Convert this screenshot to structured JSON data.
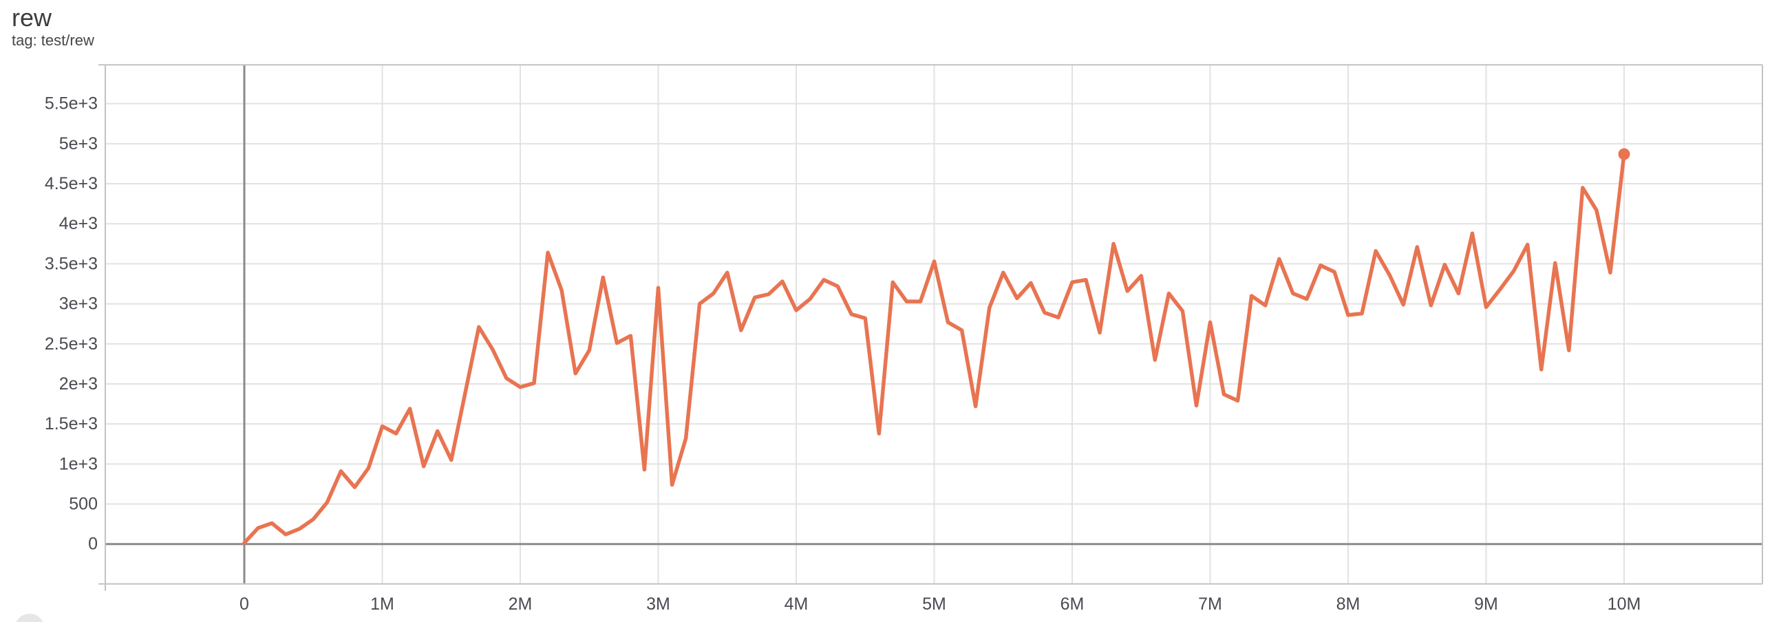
{
  "header": {
    "title": "rew",
    "tag": "tag: test/rew"
  },
  "colors": {
    "line": "#e87451",
    "grid": "#e2e2e2",
    "border": "#c2c2c2",
    "zero_axis": "#8a8a8a",
    "tick_text": "#4a4a52",
    "title_text": "#3c3c3c"
  },
  "chart_data": {
    "type": "line",
    "title": "rew",
    "subtitle": "tag: test/rew",
    "grid": true,
    "legend": "none",
    "x_unit": "steps (millions)",
    "xlim_millions": [
      -1.01,
      11.0
    ],
    "ylim": [
      -500,
      5990
    ],
    "x_tick_millions": [
      0,
      1,
      2,
      3,
      4,
      5,
      6,
      7,
      8,
      9,
      10
    ],
    "x_tick_labels": [
      "0",
      "1M",
      "2M",
      "3M",
      "4M",
      "5M",
      "6M",
      "7M",
      "8M",
      "9M",
      "10M"
    ],
    "y_tick_values": [
      0,
      500,
      1000,
      1500,
      2000,
      2500,
      3000,
      3500,
      4000,
      4500,
      5000,
      5500
    ],
    "y_tick_labels": [
      "0",
      "500",
      "1e+3",
      "1.5e+3",
      "2e+3",
      "2.5e+3",
      "3e+3",
      "3.5e+3",
      "4e+3",
      "4.5e+3",
      "5e+3",
      "5.5e+3"
    ],
    "series": [
      {
        "name": "test/rew",
        "x_millions": [
          0,
          0.1,
          0.2,
          0.3,
          0.4,
          0.5,
          0.6,
          0.7,
          0.8,
          0.9,
          1,
          1.1,
          1.2,
          1.3,
          1.4,
          1.5,
          1.6,
          1.7,
          1.8,
          1.9,
          2,
          2.1,
          2.2,
          2.3,
          2.4,
          2.5,
          2.6,
          2.7,
          2.8,
          2.9,
          3,
          3.1,
          3.2,
          3.3,
          3.4,
          3.5,
          3.6,
          3.7,
          3.8,
          3.9,
          4,
          4.1,
          4.2,
          4.3,
          4.4,
          4.5,
          4.6,
          4.7,
          4.8,
          4.9,
          5,
          5.1,
          5.2,
          5.3,
          5.4,
          5.5,
          5.6,
          5.7,
          5.8,
          5.9,
          6,
          6.1,
          6.2,
          6.3,
          6.4,
          6.5,
          6.6,
          6.7,
          6.8,
          6.9,
          7,
          7.1,
          7.2,
          7.3,
          7.4,
          7.5,
          7.6,
          7.7,
          7.8,
          7.9,
          8,
          8.1,
          8.2,
          8.3,
          8.4,
          8.5,
          8.6,
          8.7,
          8.8,
          8.9,
          9,
          9.1,
          9.2,
          9.3,
          9.4,
          9.5,
          9.6,
          9.7,
          9.8,
          9.9,
          10
        ],
        "values": [
          15,
          200,
          260,
          120,
          190,
          310,
          520,
          910,
          710,
          950,
          1470,
          1380,
          1690,
          970,
          1410,
          1050,
          1880,
          2710,
          2430,
          2070,
          1960,
          2010,
          3640,
          3170,
          2130,
          2420,
          3330,
          2510,
          2600,
          930,
          3200,
          740,
          1320,
          3000,
          3130,
          3390,
          2670,
          3080,
          3120,
          3280,
          2920,
          3060,
          3300,
          3220,
          2870,
          2820,
          1380,
          3270,
          3030,
          3030,
          3530,
          2770,
          2670,
          1720,
          2950,
          3390,
          3070,
          3260,
          2890,
          2830,
          3270,
          3300,
          2640,
          3750,
          3160,
          3350,
          2300,
          3130,
          2910,
          1730,
          2770,
          1870,
          1790,
          3100,
          2980,
          3560,
          3130,
          3060,
          3480,
          3400,
          2860,
          2880,
          3660,
          3360,
          2990,
          3710,
          2980,
          3490,
          3130,
          3880,
          2960,
          3180,
          3410,
          3740,
          2180,
          3510,
          2420,
          4450,
          4170,
          3390,
          4870
        ]
      }
    ],
    "final_point": {
      "x_millions": 10,
      "value": 4870,
      "marker": "dot"
    }
  }
}
